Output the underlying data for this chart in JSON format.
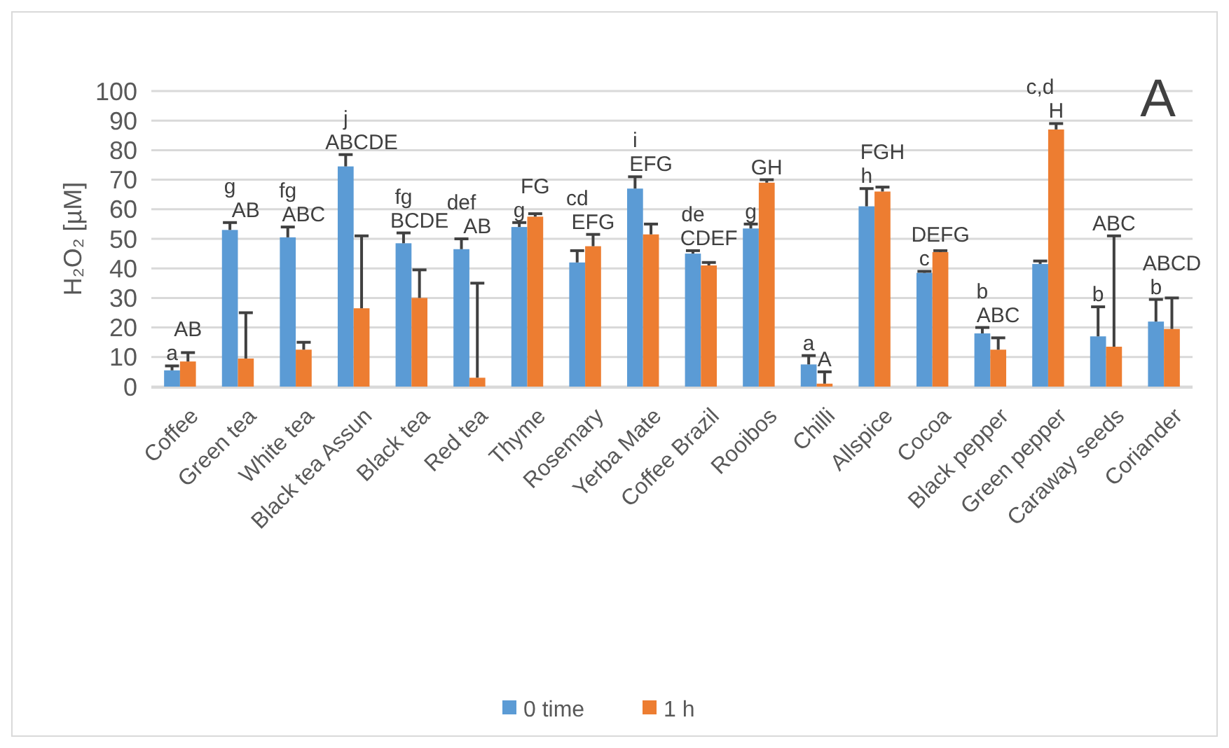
{
  "chart_data": {
    "type": "bar",
    "ylabel": "H₂O₂ [µM]",
    "categories": [
      "Coffee",
      "Green tea",
      "White tea",
      "Black tea Assun",
      "Black tea",
      "Red tea",
      "Thyme",
      "Rosemary",
      "Yerba Mate",
      "Coffee Brazil",
      "Rooibos",
      "Chilli",
      "Allspice",
      "Cocoa",
      "Black pepper",
      "Green pepper",
      "Caraway seeds",
      "Coriander"
    ],
    "series": [
      {
        "name": "0 time",
        "color": "#5b9bd5",
        "values": [
          5.5,
          53,
          50.5,
          74.5,
          48.5,
          46.5,
          54,
          42,
          67,
          45,
          53.5,
          7.5,
          61,
          38.5,
          18,
          41.5,
          17,
          22
        ],
        "errors": [
          [
            5.5,
            7
          ],
          [
            53,
            55.5
          ],
          [
            50.5,
            54
          ],
          [
            74.5,
            78.5
          ],
          [
            48.5,
            52
          ],
          [
            46.5,
            50
          ],
          [
            54,
            55.5
          ],
          [
            42,
            46
          ],
          [
            67,
            71
          ],
          [
            45,
            46
          ],
          [
            53.5,
            55
          ],
          [
            7.5,
            10.5
          ],
          [
            61,
            67
          ],
          [
            38.5,
            39
          ],
          [
            18,
            20
          ],
          [
            41.5,
            42.5
          ],
          [
            17,
            27
          ],
          [
            22,
            29.5
          ]
        ]
      },
      {
        "name": "1 h",
        "color": "#ed7d31",
        "values": [
          8.5,
          9.5,
          12.5,
          26.5,
          30,
          3,
          57.5,
          47.5,
          51.5,
          41,
          69,
          1,
          66,
          45.5,
          12.5,
          87,
          13.5,
          19.5
        ],
        "errors": [
          [
            8.5,
            11.5
          ],
          [
            9.5,
            25
          ],
          [
            12.5,
            15
          ],
          [
            26.5,
            51
          ],
          [
            30,
            39.5
          ],
          [
            3,
            35
          ],
          [
            57.5,
            58.5
          ],
          [
            47.5,
            51.5
          ],
          [
            51.5,
            55
          ],
          [
            41,
            42
          ],
          [
            69,
            70
          ],
          [
            1,
            5
          ],
          [
            66,
            67.5
          ],
          [
            45.5,
            46
          ],
          [
            12.5,
            16.5
          ],
          [
            87,
            89
          ],
          [
            13.5,
            51
          ],
          [
            19.5,
            30
          ]
        ]
      }
    ],
    "ylim": [
      0,
      100
    ],
    "yticks": [
      0,
      10,
      20,
      30,
      40,
      50,
      60,
      70,
      80,
      90,
      100
    ],
    "grid": "y",
    "legend": "bottom",
    "annotations": [
      "A",
      "a",
      "AB",
      "g",
      "AB",
      "fg",
      "ABC",
      "j",
      "ABCDE",
      "fg",
      "BCDE",
      "def",
      "AB",
      "g",
      "FG",
      "cd",
      "EFG",
      "i",
      "EFG",
      "de",
      "CDEF",
      "g",
      "GH",
      "a",
      "A",
      "h",
      "FGH",
      "c",
      "DEFG",
      "b",
      "ABC",
      "c,d",
      "H",
      "b",
      "ABC",
      "b",
      "ABCD"
    ]
  }
}
